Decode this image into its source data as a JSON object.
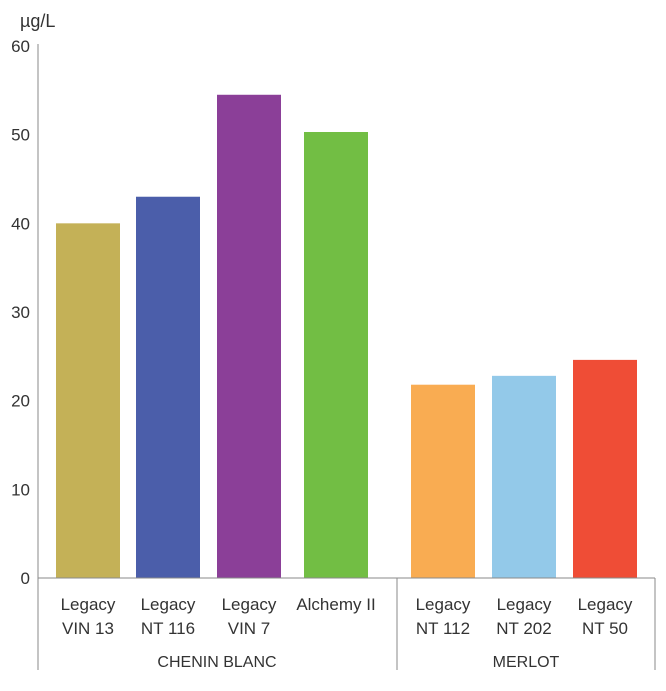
{
  "chart_data": {
    "type": "bar",
    "title": "",
    "ylabel": "µg/L",
    "xlabel": "",
    "ylim": [
      0,
      60
    ],
    "yticks": [
      "0",
      "10",
      "20",
      "30",
      "40",
      "50",
      "60"
    ],
    "grid": false,
    "groups": [
      {
        "name": "CHENIN BLANC",
        "bars": [
          {
            "line1": "Legacy",
            "line2": "VIN 13",
            "value": 40,
            "color": "#C4B157"
          },
          {
            "line1": "Legacy",
            "line2": "NT 116",
            "value": 43,
            "color": "#4B5EAA"
          },
          {
            "line1": "Legacy",
            "line2": "VIN 7",
            "value": 54.5,
            "color": "#8B3F98"
          },
          {
            "line1": "Alchemy II",
            "line2": "",
            "value": 50.3,
            "color": "#72BE44"
          }
        ]
      },
      {
        "name": "MERLOT",
        "bars": [
          {
            "line1": "Legacy",
            "line2": "NT 112",
            "value": 21.8,
            "color": "#F9AC52"
          },
          {
            "line1": "Legacy",
            "line2": "NT 202",
            "value": 22.8,
            "color": "#93C9E9"
          },
          {
            "line1": "Legacy",
            "line2": "NT 50",
            "value": 24.6,
            "color": "#EF4D36"
          }
        ]
      }
    ]
  }
}
